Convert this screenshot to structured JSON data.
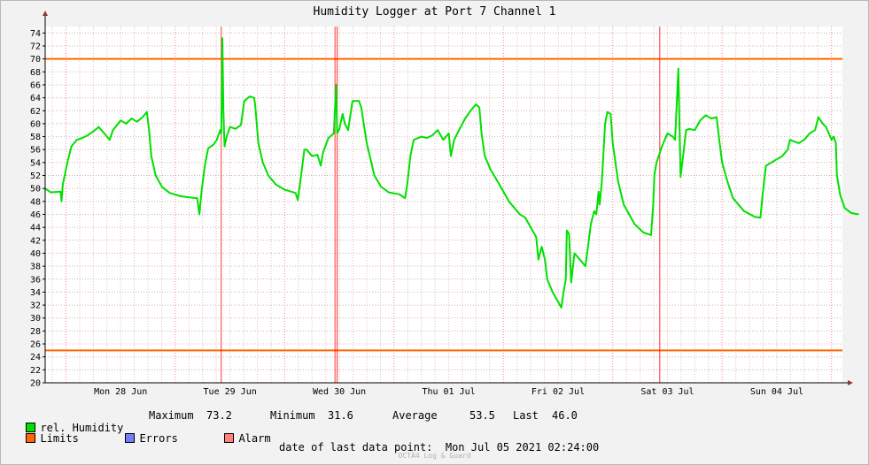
{
  "chart_data": {
    "type": "line",
    "title": "Humidity Logger at Port 7 Channel 1",
    "ylim": [
      20,
      75
    ],
    "yticks": [
      20,
      22,
      24,
      26,
      28,
      30,
      32,
      34,
      36,
      38,
      40,
      42,
      44,
      46,
      48,
      50,
      52,
      54,
      56,
      58,
      60,
      62,
      64,
      66,
      68,
      70,
      72,
      74
    ],
    "xlim_days": [
      -0.19,
      7.1
    ],
    "x_labels": [
      {
        "label": "Mon 28 Jun",
        "day": 0.5
      },
      {
        "label": "Tue 29 Jun",
        "day": 1.5
      },
      {
        "label": "Wed 30 Jun",
        "day": 2.5
      },
      {
        "label": "Thu 01 Jul",
        "day": 3.5
      },
      {
        "label": "Fri 02 Jul",
        "day": 4.5
      },
      {
        "label": "Sat 03 Jul",
        "day": 5.5
      },
      {
        "label": "Sun 04 Jul",
        "day": 6.5
      }
    ],
    "limits": [
      70,
      25
    ],
    "alarm_markers_days": [
      1.42,
      2.46,
      2.48,
      5.43
    ],
    "series": [
      {
        "name": "rel. Humidity",
        "color": "#00e000",
        "points": [
          [
            -0.19,
            50.0
          ],
          [
            -0.14,
            49.4
          ],
          [
            -0.05,
            49.5
          ],
          [
            -0.04,
            48.0
          ],
          [
            -0.03,
            50.5
          ],
          [
            0.0,
            53.0
          ],
          [
            0.02,
            54.5
          ],
          [
            0.05,
            56.5
          ],
          [
            0.1,
            57.5
          ],
          [
            0.15,
            57.8
          ],
          [
            0.2,
            58.2
          ],
          [
            0.25,
            58.8
          ],
          [
            0.3,
            59.5
          ],
          [
            0.35,
            58.5
          ],
          [
            0.4,
            57.5
          ],
          [
            0.43,
            59.0
          ],
          [
            0.5,
            60.5
          ],
          [
            0.55,
            60.0
          ],
          [
            0.6,
            60.8
          ],
          [
            0.65,
            60.3
          ],
          [
            0.7,
            61.0
          ],
          [
            0.74,
            61.8
          ],
          [
            0.76,
            59.0
          ],
          [
            0.78,
            55.0
          ],
          [
            0.82,
            52.0
          ],
          [
            0.88,
            50.2
          ],
          [
            0.95,
            49.3
          ],
          [
            1.05,
            48.8
          ],
          [
            1.2,
            48.5
          ],
          [
            1.22,
            46.0
          ],
          [
            1.24,
            49.5
          ],
          [
            1.27,
            53.5
          ],
          [
            1.3,
            56.2
          ],
          [
            1.35,
            56.8
          ],
          [
            1.38,
            57.5
          ],
          [
            1.41,
            59.0
          ],
          [
            1.42,
            58.5
          ],
          [
            1.43,
            73.2
          ],
          [
            1.44,
            62.0
          ],
          [
            1.45,
            56.5
          ],
          [
            1.47,
            58.0
          ],
          [
            1.5,
            59.5
          ],
          [
            1.55,
            59.2
          ],
          [
            1.6,
            59.8
          ],
          [
            1.63,
            63.5
          ],
          [
            1.68,
            64.2
          ],
          [
            1.72,
            64.0
          ],
          [
            1.73,
            63.0
          ],
          [
            1.76,
            57.0
          ],
          [
            1.8,
            54.0
          ],
          [
            1.85,
            52.0
          ],
          [
            1.92,
            50.6
          ],
          [
            2.0,
            49.8
          ],
          [
            2.1,
            49.3
          ],
          [
            2.12,
            48.2
          ],
          [
            2.15,
            52.0
          ],
          [
            2.18,
            56.0
          ],
          [
            2.2,
            56.0
          ],
          [
            2.25,
            55.0
          ],
          [
            2.3,
            55.2
          ],
          [
            2.33,
            53.5
          ],
          [
            2.35,
            55.5
          ],
          [
            2.4,
            57.8
          ],
          [
            2.45,
            58.5
          ],
          [
            2.47,
            66.0
          ],
          [
            2.48,
            58.5
          ],
          [
            2.5,
            59.2
          ],
          [
            2.53,
            61.5
          ],
          [
            2.55,
            60.0
          ],
          [
            2.58,
            59.0
          ],
          [
            2.62,
            63.5
          ],
          [
            2.68,
            63.5
          ],
          [
            2.7,
            62.5
          ],
          [
            2.75,
            57.0
          ],
          [
            2.82,
            52.0
          ],
          [
            2.88,
            50.3
          ],
          [
            2.95,
            49.4
          ],
          [
            3.05,
            49.1
          ],
          [
            3.1,
            48.5
          ],
          [
            3.12,
            50.5
          ],
          [
            3.15,
            55.0
          ],
          [
            3.18,
            57.5
          ],
          [
            3.25,
            58.0
          ],
          [
            3.3,
            57.8
          ],
          [
            3.35,
            58.2
          ],
          [
            3.4,
            59.0
          ],
          [
            3.45,
            57.5
          ],
          [
            3.5,
            58.5
          ],
          [
            3.52,
            55.0
          ],
          [
            3.55,
            57.5
          ],
          [
            3.6,
            59.2
          ],
          [
            3.65,
            60.8
          ],
          [
            3.7,
            62.0
          ],
          [
            3.75,
            63.0
          ],
          [
            3.78,
            62.5
          ],
          [
            3.8,
            58.5
          ],
          [
            3.83,
            55.0
          ],
          [
            3.88,
            53.0
          ],
          [
            3.95,
            51.0
          ],
          [
            4.05,
            48.0
          ],
          [
            4.15,
            46.0
          ],
          [
            4.2,
            45.5
          ],
          [
            4.25,
            44.0
          ],
          [
            4.3,
            42.5
          ],
          [
            4.32,
            39.0
          ],
          [
            4.35,
            41.0
          ],
          [
            4.38,
            39.0
          ],
          [
            4.4,
            36.0
          ],
          [
            4.45,
            34.0
          ],
          [
            4.5,
            32.5
          ],
          [
            4.53,
            31.6
          ],
          [
            4.55,
            34.0
          ],
          [
            4.57,
            36.0
          ],
          [
            4.58,
            43.5
          ],
          [
            4.6,
            43.0
          ],
          [
            4.62,
            35.5
          ],
          [
            4.65,
            40.0
          ],
          [
            4.7,
            39.0
          ],
          [
            4.75,
            38.0
          ],
          [
            4.77,
            40.5
          ],
          [
            4.8,
            44.5
          ],
          [
            4.83,
            46.5
          ],
          [
            4.85,
            46.0
          ],
          [
            4.87,
            49.5
          ],
          [
            4.88,
            47.5
          ],
          [
            4.9,
            51.0
          ],
          [
            4.93,
            60.0
          ],
          [
            4.95,
            61.8
          ],
          [
            4.98,
            61.5
          ],
          [
            5.0,
            57.0
          ],
          [
            5.05,
            51.0
          ],
          [
            5.1,
            47.5
          ],
          [
            5.2,
            44.5
          ],
          [
            5.28,
            43.2
          ],
          [
            5.35,
            42.8
          ],
          [
            5.37,
            47.5
          ],
          [
            5.38,
            52.0
          ],
          [
            5.4,
            54.0
          ],
          [
            5.45,
            56.5
          ],
          [
            5.5,
            58.5
          ],
          [
            5.55,
            58.0
          ],
          [
            5.57,
            57.5
          ],
          [
            5.6,
            68.5
          ],
          [
            5.61,
            60.0
          ],
          [
            5.62,
            51.8
          ],
          [
            5.65,
            56.0
          ],
          [
            5.67,
            59.0
          ],
          [
            5.7,
            59.2
          ],
          [
            5.75,
            59.0
          ],
          [
            5.8,
            60.5
          ],
          [
            5.85,
            61.3
          ],
          [
            5.9,
            60.8
          ],
          [
            5.95,
            61.0
          ],
          [
            5.97,
            58.0
          ],
          [
            6.0,
            54.0
          ],
          [
            6.05,
            51.0
          ],
          [
            6.1,
            48.5
          ],
          [
            6.2,
            46.5
          ],
          [
            6.3,
            45.6
          ],
          [
            6.35,
            45.5
          ],
          [
            6.37,
            49.0
          ],
          [
            6.4,
            53.5
          ],
          [
            6.45,
            54.0
          ],
          [
            6.5,
            54.5
          ],
          [
            6.55,
            55.0
          ],
          [
            6.6,
            56.0
          ],
          [
            6.62,
            57.5
          ],
          [
            6.7,
            57.0
          ],
          [
            6.75,
            57.5
          ],
          [
            6.8,
            58.5
          ],
          [
            6.85,
            59.0
          ],
          [
            6.88,
            61.0
          ],
          [
            6.92,
            60.0
          ],
          [
            6.95,
            59.5
          ],
          [
            7.0,
            57.5
          ],
          [
            7.02,
            58.0
          ],
          [
            7.04,
            57.0
          ],
          [
            7.05,
            52.0
          ],
          [
            7.08,
            49.0
          ],
          [
            7.12,
            47.0
          ],
          [
            7.18,
            46.2
          ],
          [
            7.25,
            46.0
          ]
        ]
      }
    ]
  },
  "legend": {
    "humidity": {
      "label": "rel. Humidity",
      "color": "#00e000"
    },
    "limits": {
      "label": "Limits",
      "color": "#ff6600"
    },
    "errors": {
      "label": "Errors",
      "color": "#6f7fff"
    },
    "alarm": {
      "label": "Alarm",
      "color": "#ff7f7f"
    }
  },
  "stats": {
    "maximum_label": "Maximum",
    "maximum_value": "73.2",
    "minimum_label": "Minimum",
    "minimum_value": "31.6",
    "average_label": "Average",
    "average_value": "53.5",
    "last_label": "Last",
    "last_value": "46.0"
  },
  "footer": "date of last data point:  Mon Jul 05 2021 02:24:00",
  "brand": "OCTA4 Log & Guard"
}
